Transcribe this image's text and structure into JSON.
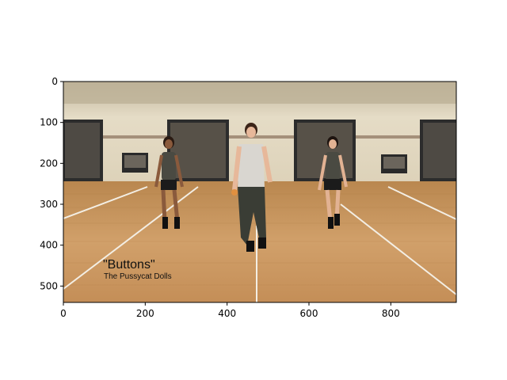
{
  "image": {
    "caption_title": "\"Buttons\"",
    "caption_subtitle": "The Pussycat Dolls"
  },
  "axes": {
    "x_ticks": [
      "0",
      "200",
      "400",
      "600",
      "800"
    ],
    "y_ticks": [
      "0",
      "100",
      "200",
      "300",
      "400",
      "500"
    ],
    "x_range": [
      0,
      960
    ],
    "y_range": [
      0,
      540
    ],
    "y_inverted": true
  },
  "colors": {
    "wall": "#e3d9c3",
    "wall_upper": "#cfc4aa",
    "floor": "#c8955a",
    "floor_dark": "#a87440",
    "mirror": "#2a2a2a",
    "court_line": "#f4f1ea",
    "shorts": "#1b1b1b",
    "top": "#4a4a42",
    "skin_light": "#e7b89a",
    "skin_dark": "#8a5a3c"
  }
}
